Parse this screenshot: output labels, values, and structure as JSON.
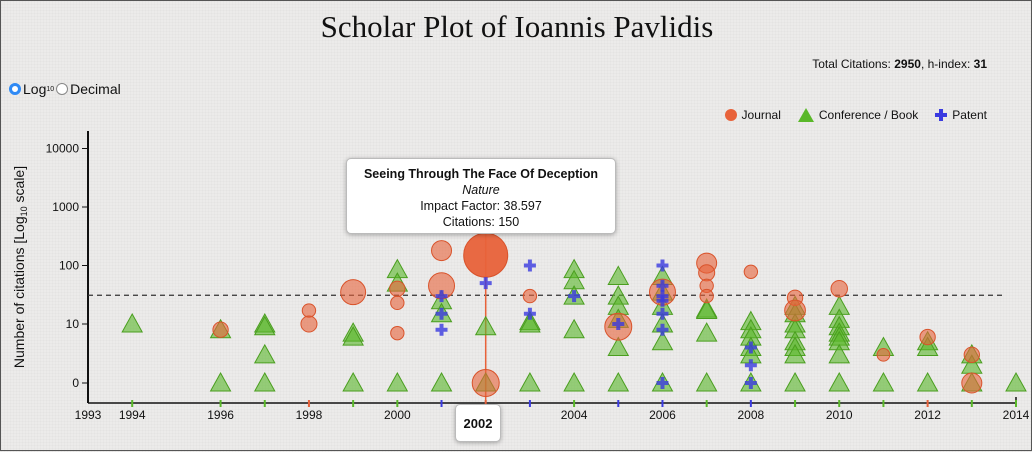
{
  "title": "Scholar Plot of Ioannis Pavlidis",
  "stats": {
    "total_citations_label": "Total Citations:",
    "total_citations": "2950",
    "h_index_label": ", h-index:",
    "h_index": "31"
  },
  "scale_toggle": {
    "log_label": "Log",
    "log_sub": "10",
    "decimal_label": "Decimal",
    "selected": "log"
  },
  "legend": [
    {
      "label": "Journal",
      "shape": "circle",
      "color": "#e8623a"
    },
    {
      "label": "Conference / Book",
      "shape": "triangle",
      "color": "#5ab829"
    },
    {
      "label": "Patent",
      "shape": "plus",
      "color": "#3a3ae0"
    }
  ],
  "tooltip": {
    "title": "Seeing Through The Face Of Deception",
    "journal": "Nature",
    "impact_factor": "Impact Factor: 38.597",
    "citations": "Citations: 150"
  },
  "highlight_year": "2002",
  "chart_data": {
    "type": "scatter",
    "title": "Scholar Plot of Ioannis Pavlidis",
    "xlabel": "",
    "ylabel": "Number of citations [Log10 scale]",
    "ylabel_main": "Number of citations [Log",
    "ylabel_sub": "10",
    "ylabel_tail": " scale]",
    "xlim": [
      1993,
      2014
    ],
    "x_ticks": [
      1993,
      1994,
      1996,
      1998,
      2000,
      2002,
      2004,
      2006,
      2008,
      2010,
      2012,
      2014
    ],
    "y_ticks": [
      {
        "value": 0,
        "label": "0"
      },
      {
        "value": 10,
        "label": "10"
      },
      {
        "value": 100,
        "label": "100"
      },
      {
        "value": 1000,
        "label": "1000"
      },
      {
        "value": 10000,
        "label": "10000"
      }
    ],
    "h_index_line": 31,
    "year_tick_colors": {
      "1994": "#5ab829",
      "1996": "#5ab829",
      "1997": "#5ab829",
      "1998": "#e8623a",
      "1999": "#5ab829",
      "2000": "#5ab829",
      "2001": "#3a3ae0",
      "2002": "#e8623a",
      "2003": "#3a3ae0",
      "2004": "#5ab829",
      "2005": "#3a3ae0",
      "2006": "#3a3ae0",
      "2007": "#5ab829",
      "2008": "#3a3ae0",
      "2009": "#5ab829",
      "2010": "#5ab829",
      "2011": "#5ab829",
      "2012": "#e8623a",
      "2013": "#5ab829",
      "2014": "#5ab829"
    },
    "colors": {
      "journal": "#e8623a",
      "conference": "#5ab829",
      "patent": "#3a3ae0"
    },
    "series": [
      {
        "name": "Journal",
        "points": [
          {
            "year": 1996,
            "citations": 7,
            "impact": 1.5
          },
          {
            "year": 1998,
            "citations": 17,
            "impact": 0.8
          },
          {
            "year": 1998,
            "citations": 9,
            "impact": 1.8
          },
          {
            "year": 1999,
            "citations": 35,
            "impact": 8
          },
          {
            "year": 2000,
            "citations": 40,
            "impact": 1.5
          },
          {
            "year": 2000,
            "citations": 23,
            "impact": 0.8
          },
          {
            "year": 2000,
            "citations": 6,
            "impact": 0.8
          },
          {
            "year": 2001,
            "citations": 180,
            "impact": 4
          },
          {
            "year": 2001,
            "citations": 45,
            "impact": 9
          },
          {
            "year": 2002,
            "citations": 150,
            "impact": 38.597
          },
          {
            "year": 2002,
            "citations": 0,
            "impact": 10
          },
          {
            "year": 2003,
            "citations": 30,
            "impact": 0.8
          },
          {
            "year": 2005,
            "citations": 8,
            "impact": 10
          },
          {
            "year": 2006,
            "citations": 35,
            "impact": 9
          },
          {
            "year": 2007,
            "citations": 110,
            "impact": 4
          },
          {
            "year": 2007,
            "citations": 75,
            "impact": 1.8
          },
          {
            "year": 2007,
            "citations": 45,
            "impact": 0.8
          },
          {
            "year": 2007,
            "citations": 30,
            "impact": 0.8
          },
          {
            "year": 2008,
            "citations": 78,
            "impact": 0.8
          },
          {
            "year": 2009,
            "citations": 28,
            "impact": 1.5
          },
          {
            "year": 2009,
            "citations": 17,
            "impact": 4.5
          },
          {
            "year": 2010,
            "citations": 40,
            "impact": 2
          },
          {
            "year": 2011,
            "citations": 2,
            "impact": 0.6
          },
          {
            "year": 2012,
            "citations": 5,
            "impact": 1.5
          },
          {
            "year": 2013,
            "citations": 2,
            "impact": 1.5
          },
          {
            "year": 2013,
            "citations": 0,
            "impact": 4
          }
        ]
      },
      {
        "name": "Conference / Book",
        "points": [
          {
            "year": 1994,
            "citations": 9
          },
          {
            "year": 1996,
            "citations": 7
          },
          {
            "year": 1996,
            "citations": 0
          },
          {
            "year": 1997,
            "citations": 9
          },
          {
            "year": 1997,
            "citations": 8
          },
          {
            "year": 1997,
            "citations": 2
          },
          {
            "year": 1997,
            "citations": 0
          },
          {
            "year": 1999,
            "citations": 6
          },
          {
            "year": 1999,
            "citations": 5
          },
          {
            "year": 1999,
            "citations": 0
          },
          {
            "year": 2000,
            "citations": 85
          },
          {
            "year": 2000,
            "citations": 50
          },
          {
            "year": 2000,
            "citations": 0
          },
          {
            "year": 2001,
            "citations": 25
          },
          {
            "year": 2001,
            "citations": 15
          },
          {
            "year": 2001,
            "citations": 0
          },
          {
            "year": 2002,
            "citations": 8
          },
          {
            "year": 2002,
            "citations": 0
          },
          {
            "year": 2003,
            "citations": 11
          },
          {
            "year": 2003,
            "citations": 9
          },
          {
            "year": 2003,
            "citations": 0
          },
          {
            "year": 2004,
            "citations": 85
          },
          {
            "year": 2004,
            "citations": 55
          },
          {
            "year": 2004,
            "citations": 30
          },
          {
            "year": 2004,
            "citations": 7
          },
          {
            "year": 2004,
            "citations": 0
          },
          {
            "year": 2005,
            "citations": 65
          },
          {
            "year": 2005,
            "citations": 30
          },
          {
            "year": 2005,
            "citations": 20
          },
          {
            "year": 2005,
            "citations": 12
          },
          {
            "year": 2005,
            "citations": 3
          },
          {
            "year": 2005,
            "citations": 0
          },
          {
            "year": 2006,
            "citations": 65
          },
          {
            "year": 2006,
            "citations": 35
          },
          {
            "year": 2006,
            "citations": 20
          },
          {
            "year": 2006,
            "citations": 10
          },
          {
            "year": 2006,
            "citations": 4
          },
          {
            "year": 2006,
            "citations": 0
          },
          {
            "year": 2007,
            "citations": 18
          },
          {
            "year": 2007,
            "citations": 17
          },
          {
            "year": 2007,
            "citations": 6
          },
          {
            "year": 2007,
            "citations": 0
          },
          {
            "year": 2008,
            "citations": 11
          },
          {
            "year": 2008,
            "citations": 7
          },
          {
            "year": 2008,
            "citations": 5
          },
          {
            "year": 2008,
            "citations": 3
          },
          {
            "year": 2008,
            "citations": 2
          },
          {
            "year": 2008,
            "citations": 0
          },
          {
            "year": 2009,
            "citations": 20
          },
          {
            "year": 2009,
            "citations": 15
          },
          {
            "year": 2009,
            "citations": 10
          },
          {
            "year": 2009,
            "citations": 7
          },
          {
            "year": 2009,
            "citations": 4
          },
          {
            "year": 2009,
            "citations": 3
          },
          {
            "year": 2009,
            "citations": 2
          },
          {
            "year": 2009,
            "citations": 0
          },
          {
            "year": 2010,
            "citations": 20
          },
          {
            "year": 2010,
            "citations": 12
          },
          {
            "year": 2010,
            "citations": 8
          },
          {
            "year": 2010,
            "citations": 6
          },
          {
            "year": 2010,
            "citations": 5
          },
          {
            "year": 2010,
            "citations": 4
          },
          {
            "year": 2010,
            "citations": 2
          },
          {
            "year": 2010,
            "citations": 0
          },
          {
            "year": 2011,
            "citations": 3
          },
          {
            "year": 2011,
            "citations": 0
          },
          {
            "year": 2012,
            "citations": 4
          },
          {
            "year": 2012,
            "citations": 3
          },
          {
            "year": 2012,
            "citations": 0
          },
          {
            "year": 2013,
            "citations": 2
          },
          {
            "year": 2013,
            "citations": 1
          },
          {
            "year": 2013,
            "citations": 0
          },
          {
            "year": 2014,
            "citations": 0
          }
        ]
      },
      {
        "name": "Patent",
        "points": [
          {
            "year": 2001,
            "citations": 30
          },
          {
            "year": 2001,
            "citations": 15
          },
          {
            "year": 2001,
            "citations": 7
          },
          {
            "year": 2002,
            "citations": 50
          },
          {
            "year": 2003,
            "citations": 100
          },
          {
            "year": 2003,
            "citations": 15
          },
          {
            "year": 2004,
            "citations": 30
          },
          {
            "year": 2005,
            "citations": 9
          },
          {
            "year": 2006,
            "citations": 100
          },
          {
            "year": 2006,
            "citations": 45
          },
          {
            "year": 2006,
            "citations": 30
          },
          {
            "year": 2006,
            "citations": 25
          },
          {
            "year": 2006,
            "citations": 15
          },
          {
            "year": 2006,
            "citations": 7
          },
          {
            "year": 2006,
            "citations": 0
          },
          {
            "year": 2008,
            "citations": 3
          },
          {
            "year": 2008,
            "citations": 1
          },
          {
            "year": 2008,
            "citations": 0
          }
        ]
      }
    ]
  }
}
